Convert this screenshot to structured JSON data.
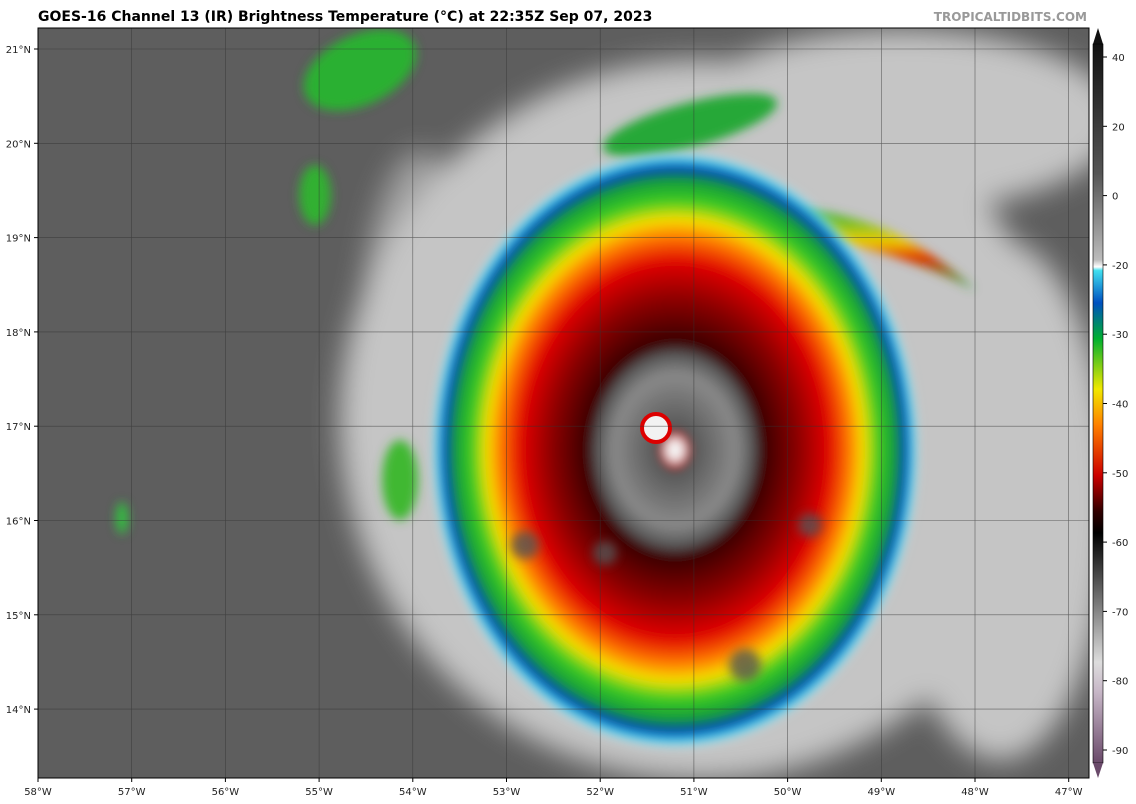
{
  "header": {
    "title": "GOES-16 Channel 13 (IR) Brightness Temperature (°C) at 22:35Z Sep 07, 2023",
    "credit": "TROPICALTIDBITS.COM"
  },
  "map": {
    "lat_labels": [
      "21°N",
      "20°N",
      "19°N",
      "18°N",
      "17°N",
      "16°N",
      "15°N",
      "14°N"
    ],
    "lon_labels": [
      "58°W",
      "57°W",
      "56°W",
      "55°W",
      "54°W",
      "53°W",
      "52°W",
      "51°W",
      "50°W",
      "49°W",
      "48°W",
      "47°W"
    ]
  },
  "colorbar": {
    "ticks": [
      40,
      20,
      0,
      -20,
      -30,
      -40,
      -50,
      -60,
      -70,
      -80,
      -90
    ]
  }
}
